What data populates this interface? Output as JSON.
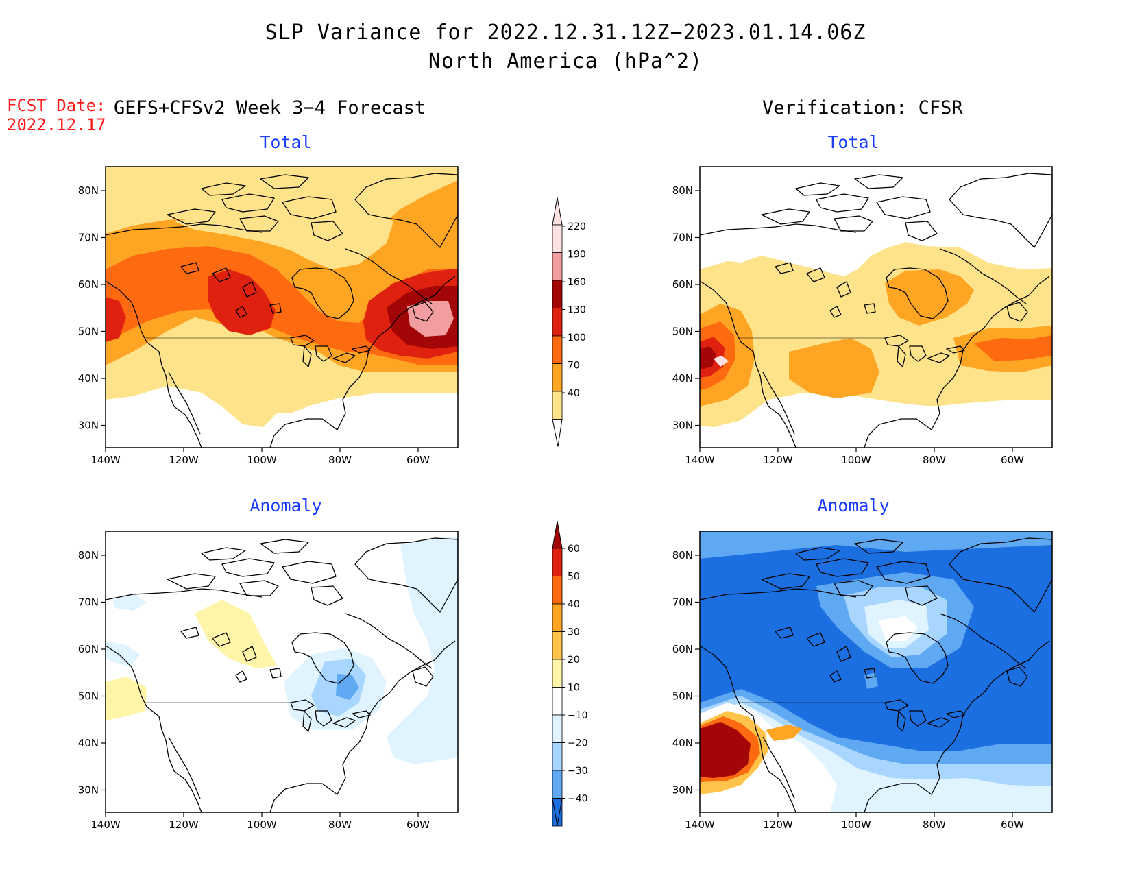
{
  "header": {
    "title_line1": "SLP Variance for 2022.12.31.12Z−2023.01.14.06Z",
    "title_line2": "North America (hPa^2)",
    "fcst_label": "FCST Date:",
    "fcst_date": "2022.12.17",
    "left_column": "GEFS+CFSv2 Week 3−4 Forecast",
    "right_column": "Verification: CFSR"
  },
  "panels": {
    "fc_total": "Total",
    "ver_total": "Total",
    "fc_anom": "Anomaly",
    "ver_anom": "Anomaly"
  },
  "axes": {
    "lat_ticks": [
      "80N",
      "70N",
      "60N",
      "50N",
      "40N",
      "30N"
    ],
    "lon_ticks": [
      "140W",
      "120W",
      "100W",
      "80W",
      "60W"
    ]
  },
  "colorbar_total": {
    "levels": [
      "40",
      "70",
      "100",
      "130",
      "160",
      "190",
      "220"
    ],
    "colors": [
      "#fee38a",
      "#fea524",
      "#fd6a10",
      "#df2210",
      "#a30606",
      "#f29da0",
      "#fde2e2"
    ]
  },
  "colorbar_anom": {
    "levels": [
      "60",
      "50",
      "40",
      "30",
      "20",
      "10",
      "−10",
      "−20",
      "−30",
      "−40"
    ],
    "colors": [
      "#a30606",
      "#df2210",
      "#fd6a10",
      "#fea524",
      "#fec348",
      "#fff5a8",
      "#ffffff",
      "#dff4ff",
      "#a8d6ff",
      "#5fa8f2",
      "#1c6fe0",
      "#1c6fe0"
    ]
  },
  "map_colors": {
    "t40": "#fee38a",
    "t70": "#fea524",
    "t100": "#fd6a10",
    "t130": "#df2210",
    "t160": "#a30606",
    "t190": "#f29da0",
    "a_neg10": "#dff4ff",
    "a_neg20": "#a8d6ff",
    "a_neg30": "#5fa8f2",
    "a_neg40": "#1c6fe0",
    "a_pos10": "#fff5a8",
    "coast": "#000000"
  }
}
